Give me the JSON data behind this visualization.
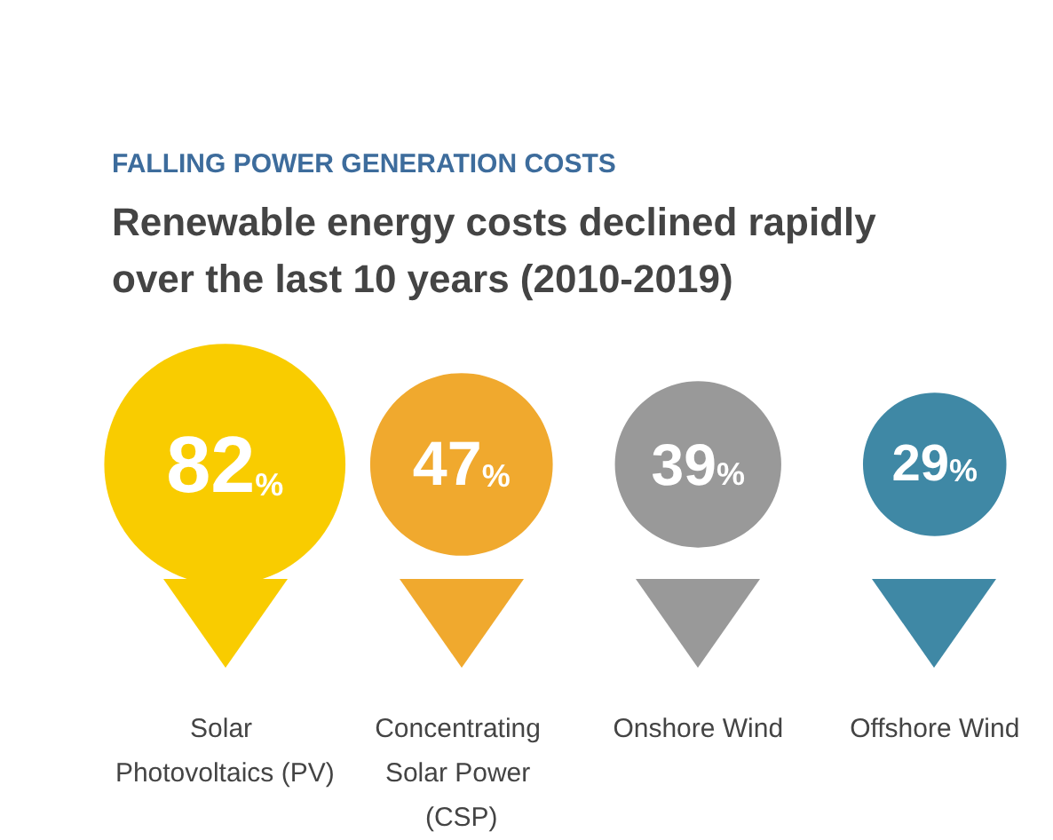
{
  "chart_data": {
    "type": "other",
    "subtitle": "FALLING POWER GENERATION COSTS",
    "title": "Renewable energy costs declined rapidly over the last 10 years (2010-2019)",
    "categories": [
      "Solar Photovoltaics (PV)",
      "Concentrating Solar Power (CSP)",
      "Onshore Wind",
      "Offshore Wind"
    ],
    "values": [
      82,
      47,
      39,
      29
    ],
    "value_labels": [
      "82%",
      "47%",
      "39%",
      "29%"
    ],
    "colors": [
      "#f9cc00",
      "#f0a92e",
      "#999999",
      "#3f88a5"
    ]
  }
}
